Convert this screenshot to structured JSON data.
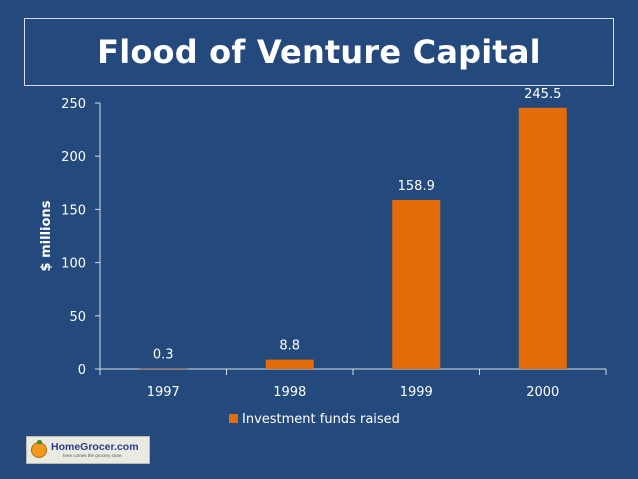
{
  "title": "Flood of Venture Capital",
  "logo": {
    "name": "HomeGrocer.com",
    "tagline": "here comes the grocery store"
  },
  "colors": {
    "background": "#24497c",
    "bar": "#e36c0a",
    "text": "#ffffff"
  },
  "chart_data": {
    "type": "bar",
    "title": "Flood of Venture Capital",
    "ylabel": "$ millions",
    "xlabel": "",
    "categories": [
      "1997",
      "1998",
      "1999",
      "2000"
    ],
    "series": [
      {
        "name": "Investment funds raised",
        "values": [
          0.3,
          8.8,
          158.9,
          245.5
        ]
      }
    ],
    "data_labels": [
      "0.3",
      "8.8",
      "158.9",
      "245.5"
    ],
    "ylim": [
      0,
      250
    ],
    "yticks": [
      0,
      50,
      100,
      150,
      200,
      250
    ],
    "grid": false,
    "legend": "bottom"
  }
}
